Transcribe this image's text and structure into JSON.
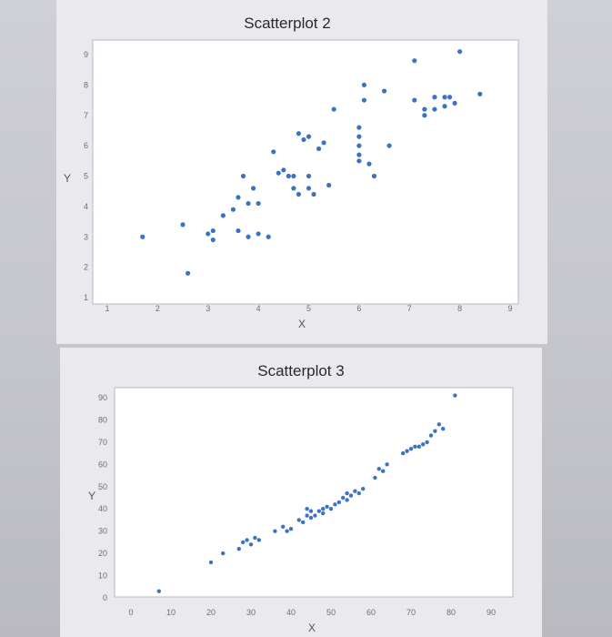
{
  "chart_data": [
    {
      "type": "scatter",
      "title": "Scatterplot 2",
      "xlabel": "X",
      "ylabel": "Y",
      "xlim": [
        1,
        9
      ],
      "ylim": [
        1,
        9
      ],
      "xticks": [
        "1",
        "2",
        "3",
        "4",
        "5",
        "6",
        "7",
        "8",
        "9"
      ],
      "yticks": [
        "1",
        "2",
        "3",
        "4",
        "5",
        "6",
        "7",
        "8",
        "9"
      ],
      "grid": false,
      "color": "#3c73c0",
      "points": [
        [
          1.7,
          3.0
        ],
        [
          2.5,
          3.4
        ],
        [
          2.6,
          1.8
        ],
        [
          3.0,
          3.1
        ],
        [
          3.1,
          2.9
        ],
        [
          3.1,
          3.2
        ],
        [
          3.3,
          3.7
        ],
        [
          3.5,
          3.9
        ],
        [
          3.6,
          3.2
        ],
        [
          3.6,
          4.3
        ],
        [
          3.7,
          5.0
        ],
        [
          3.8,
          4.1
        ],
        [
          3.8,
          3.0
        ],
        [
          3.9,
          4.6
        ],
        [
          4.0,
          3.1
        ],
        [
          4.0,
          4.1
        ],
        [
          4.2,
          3.0
        ],
        [
          4.3,
          5.8
        ],
        [
          4.4,
          5.1
        ],
        [
          4.5,
          5.2
        ],
        [
          4.6,
          5.0
        ],
        [
          4.7,
          5.0
        ],
        [
          4.7,
          4.6
        ],
        [
          4.8,
          4.4
        ],
        [
          4.8,
          6.4
        ],
        [
          4.9,
          6.2
        ],
        [
          5.0,
          4.6
        ],
        [
          5.0,
          5.0
        ],
        [
          5.0,
          6.3
        ],
        [
          5.1,
          4.4
        ],
        [
          5.2,
          5.9
        ],
        [
          5.3,
          6.1
        ],
        [
          5.4,
          4.7
        ],
        [
          5.5,
          7.2
        ],
        [
          6.0,
          6.0
        ],
        [
          6.0,
          5.7
        ],
        [
          6.0,
          5.5
        ],
        [
          6.0,
          6.3
        ],
        [
          6.0,
          6.6
        ],
        [
          6.1,
          7.5
        ],
        [
          6.1,
          8.0
        ],
        [
          6.2,
          5.4
        ],
        [
          6.3,
          5.0
        ],
        [
          6.5,
          7.8
        ],
        [
          6.6,
          6.0
        ],
        [
          7.1,
          8.8
        ],
        [
          7.1,
          7.5
        ],
        [
          7.3,
          7.2
        ],
        [
          7.3,
          7.0
        ],
        [
          7.5,
          7.2
        ],
        [
          7.5,
          7.6
        ],
        [
          7.7,
          7.3
        ],
        [
          7.7,
          7.6
        ],
        [
          7.8,
          7.6
        ],
        [
          7.9,
          7.4
        ],
        [
          8.0,
          9.1
        ],
        [
          8.4,
          7.7
        ]
      ]
    },
    {
      "type": "scatter",
      "title": "Scatterplot 3",
      "xlabel": "X",
      "ylabel": "Y",
      "xlim": [
        0,
        90
      ],
      "ylim": [
        0,
        90
      ],
      "xticks": [
        "0",
        "10",
        "20",
        "30",
        "40",
        "50",
        "60",
        "70",
        "80",
        "90"
      ],
      "yticks": [
        "0",
        "10",
        "20",
        "30",
        "40",
        "50",
        "60",
        "70",
        "80",
        "90"
      ],
      "grid": false,
      "color": "#3c73c0",
      "points": [
        [
          7,
          3
        ],
        [
          20,
          16
        ],
        [
          23,
          20
        ],
        [
          27,
          22
        ],
        [
          28,
          25
        ],
        [
          29,
          26
        ],
        [
          30,
          24
        ],
        [
          31,
          27
        ],
        [
          32,
          26
        ],
        [
          36,
          30
        ],
        [
          38,
          32
        ],
        [
          39,
          30
        ],
        [
          40,
          31
        ],
        [
          42,
          35
        ],
        [
          43,
          34
        ],
        [
          44,
          37
        ],
        [
          44,
          40
        ],
        [
          45,
          36
        ],
        [
          45,
          39
        ],
        [
          46,
          37
        ],
        [
          47,
          39
        ],
        [
          48,
          40
        ],
        [
          48,
          38
        ],
        [
          49,
          41
        ],
        [
          50,
          40
        ],
        [
          51,
          42
        ],
        [
          52,
          43
        ],
        [
          53,
          45
        ],
        [
          54,
          44
        ],
        [
          54,
          47
        ],
        [
          55,
          46
        ],
        [
          56,
          48
        ],
        [
          57,
          47
        ],
        [
          58,
          49
        ],
        [
          61,
          54
        ],
        [
          62,
          58
        ],
        [
          63,
          57
        ],
        [
          64,
          60
        ],
        [
          68,
          65
        ],
        [
          69,
          66
        ],
        [
          70,
          67
        ],
        [
          71,
          68
        ],
        [
          72,
          68
        ],
        [
          73,
          69
        ],
        [
          74,
          70
        ],
        [
          75,
          73
        ],
        [
          76,
          75
        ],
        [
          77,
          78
        ],
        [
          78,
          76
        ],
        [
          81,
          91
        ]
      ]
    }
  ]
}
